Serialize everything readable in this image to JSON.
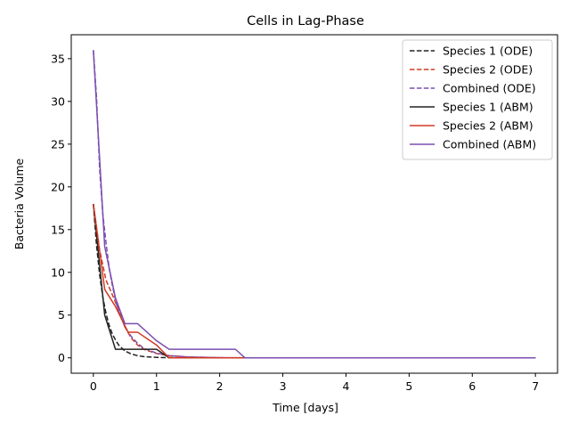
{
  "chart_data": {
    "type": "line",
    "title": "Cells in Lag-Phase",
    "xlabel": "Time [days]",
    "ylabel": "Bacteria Volume",
    "xlim": [
      -0.35,
      7.35
    ],
    "ylim": [
      -1.8,
      37.8
    ],
    "xticks": [
      0,
      1,
      2,
      3,
      4,
      5,
      6,
      7
    ],
    "yticks": [
      0,
      5,
      10,
      15,
      20,
      25,
      30,
      35
    ],
    "grid": false,
    "legend_position": "top-right",
    "series": [
      {
        "name": "Species 1 (ODE)",
        "color": "#222222",
        "style": "dashed",
        "x": [
          0,
          0.05,
          0.1,
          0.15,
          0.2,
          0.25,
          0.3,
          0.35,
          0.4,
          0.5,
          0.6,
          0.7,
          0.8,
          1.0,
          1.2,
          1.5,
          2.0,
          3.0,
          4.0,
          5.0,
          6.0,
          7.0
        ],
        "y": [
          18,
          13.2,
          9.7,
          7.1,
          5.2,
          3.8,
          2.8,
          2.1,
          1.5,
          0.8,
          0.45,
          0.25,
          0.14,
          0.05,
          0.02,
          0.01,
          0,
          0,
          0,
          0,
          0,
          0
        ]
      },
      {
        "name": "Species 2 (ODE)",
        "color": "#d03a25",
        "style": "dashed",
        "x": [
          0,
          0.1,
          0.2,
          0.3,
          0.4,
          0.5,
          0.6,
          0.7,
          0.8,
          1.0,
          1.2,
          1.5,
          2.0,
          2.5,
          3.0,
          4.0,
          5.0,
          6.0,
          7.0
        ],
        "y": [
          18,
          12.6,
          9.1,
          7.4,
          5.6,
          3.6,
          2.3,
          1.5,
          1.0,
          0.5,
          0.25,
          0.1,
          0.02,
          0,
          0,
          0,
          0,
          0,
          0
        ]
      },
      {
        "name": "Combined (ODE)",
        "color": "#7b4eb0",
        "style": "dashed",
        "x": [
          0,
          0.05,
          0.1,
          0.15,
          0.2,
          0.25,
          0.3,
          0.35,
          0.4,
          0.5,
          0.6,
          0.7,
          0.8,
          1.0,
          1.2,
          1.5,
          2.0,
          2.5,
          3.0,
          4.0,
          5.0,
          6.0,
          7.0
        ],
        "y": [
          36,
          30.5,
          22.0,
          16.8,
          13.5,
          10.5,
          8.5,
          6.8,
          5.4,
          3.6,
          2.5,
          1.7,
          1.1,
          0.55,
          0.26,
          0.1,
          0.02,
          0,
          0,
          0,
          0,
          0,
          0
        ]
      },
      {
        "name": "Species 1 (ABM)",
        "color": "#222222",
        "style": "solid",
        "x": [
          0,
          0.18,
          0.35,
          0.5,
          1.0,
          1.2,
          2.4,
          7.0
        ],
        "y": [
          18,
          5,
          1,
          1,
          1,
          0,
          0,
          0
        ]
      },
      {
        "name": "Species 2 (ABM)",
        "color": "#d03a25",
        "style": "solid",
        "x": [
          0,
          0.18,
          0.35,
          0.55,
          0.7,
          1.0,
          1.2,
          2.4,
          7.0
        ],
        "y": [
          18,
          8,
          6,
          3,
          3,
          1.5,
          0,
          0,
          0
        ]
      },
      {
        "name": "Combined (ABM)",
        "color": "#7b4eb0",
        "style": "solid",
        "x": [
          0,
          0.18,
          0.35,
          0.5,
          0.7,
          1.0,
          1.2,
          2.25,
          2.4,
          7.0
        ],
        "y": [
          36,
          13,
          7,
          4,
          4,
          2,
          1,
          1,
          0,
          0
        ]
      }
    ]
  }
}
